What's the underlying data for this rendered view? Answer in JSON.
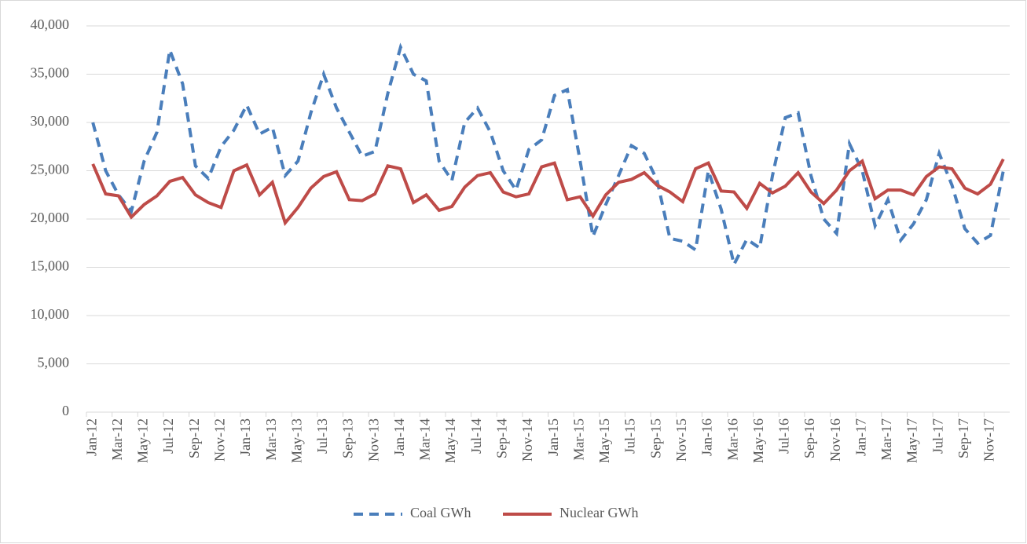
{
  "chart_data": {
    "type": "line",
    "categories": [
      "Jan-12",
      null,
      "Mar-12",
      null,
      "May-12",
      null,
      "Jul-12",
      null,
      "Sep-12",
      null,
      "Nov-12",
      null,
      "Jan-13",
      null,
      "Mar-13",
      null,
      "May-13",
      null,
      "Jul-13",
      null,
      "Sep-13",
      null,
      "Nov-13",
      null,
      "Jan-14",
      null,
      "Mar-14",
      null,
      "May-14",
      null,
      "Jul-14",
      null,
      "Sep-14",
      null,
      "Nov-14",
      null,
      "Jan-15",
      null,
      "Mar-15",
      null,
      "May-15",
      null,
      "Jul-15",
      null,
      "Sep-15",
      null,
      "Nov-15",
      null,
      "Jan-16",
      null,
      "Mar-16",
      null,
      "May-16",
      null,
      "Jul-16",
      null,
      "Sep-16",
      null,
      "Nov-16",
      null,
      "Jan-17",
      null,
      "Mar-17",
      null,
      "May-17",
      null,
      "Jul-17",
      null,
      "Sep-17",
      null,
      "Nov-17",
      null
    ],
    "series": [
      {
        "name": "Coal GWh",
        "color": "#4a7ebb",
        "style": "dashed",
        "values": [
          30000,
          25000,
          22500,
          20800,
          26000,
          29000,
          37500,
          34000,
          25500,
          24200,
          27500,
          29200,
          31800,
          28800,
          29500,
          24500,
          26000,
          31000,
          35000,
          31500,
          29000,
          26500,
          27000,
          33000,
          37800,
          35000,
          34300,
          26000,
          24000,
          30000,
          31500,
          29000,
          25000,
          23000,
          27200,
          28200,
          32800,
          33400,
          26000,
          18200,
          21500,
          24500,
          27600,
          26800,
          24000,
          18000,
          17700,
          16800,
          25000,
          21000,
          15300,
          17900,
          17000,
          24500,
          30500,
          31000,
          24500,
          20000,
          18500,
          27800,
          25000,
          19300,
          22000,
          17800,
          19500,
          22000,
          26800,
          23500,
          19000,
          17500,
          18300,
          25000
        ]
      },
      {
        "name": "Nuclear GWh",
        "color": "#be4b48",
        "style": "solid",
        "values": [
          25700,
          22600,
          22400,
          20200,
          21500,
          22400,
          23900,
          24300,
          22500,
          21700,
          21200,
          25000,
          25600,
          22500,
          23800,
          19600,
          21200,
          23200,
          24400,
          24900,
          22000,
          21900,
          22600,
          25500,
          25200,
          21700,
          22500,
          20900,
          21300,
          23300,
          24500,
          24800,
          22800,
          22300,
          22600,
          25400,
          25800,
          22000,
          22300,
          20300,
          22500,
          23800,
          24100,
          24800,
          23500,
          22800,
          21800,
          25200,
          25800,
          22900,
          22800,
          21100,
          23700,
          22700,
          23400,
          24800,
          22800,
          21600,
          23000,
          25000,
          26000,
          22100,
          23000,
          23000,
          22500,
          24400,
          25400,
          25200,
          23200,
          22600,
          23600,
          26200
        ]
      }
    ],
    "ylim": [
      0,
      40000
    ],
    "yticks": [
      0,
      {
        "value": 5000,
        "label": "5,000"
      },
      {
        "value": 10000,
        "label": "10,000"
      },
      {
        "value": 15000,
        "label": "15,000"
      },
      {
        "value": 20000,
        "label": "20,000"
      },
      {
        "value": 25000,
        "label": "25,000"
      },
      {
        "value": 30000,
        "label": "30,000"
      },
      {
        "value": 35000,
        "label": "35,000"
      },
      {
        "value": 40000,
        "label": "40,000"
      }
    ],
    "grid": true,
    "legend": "bottom"
  }
}
